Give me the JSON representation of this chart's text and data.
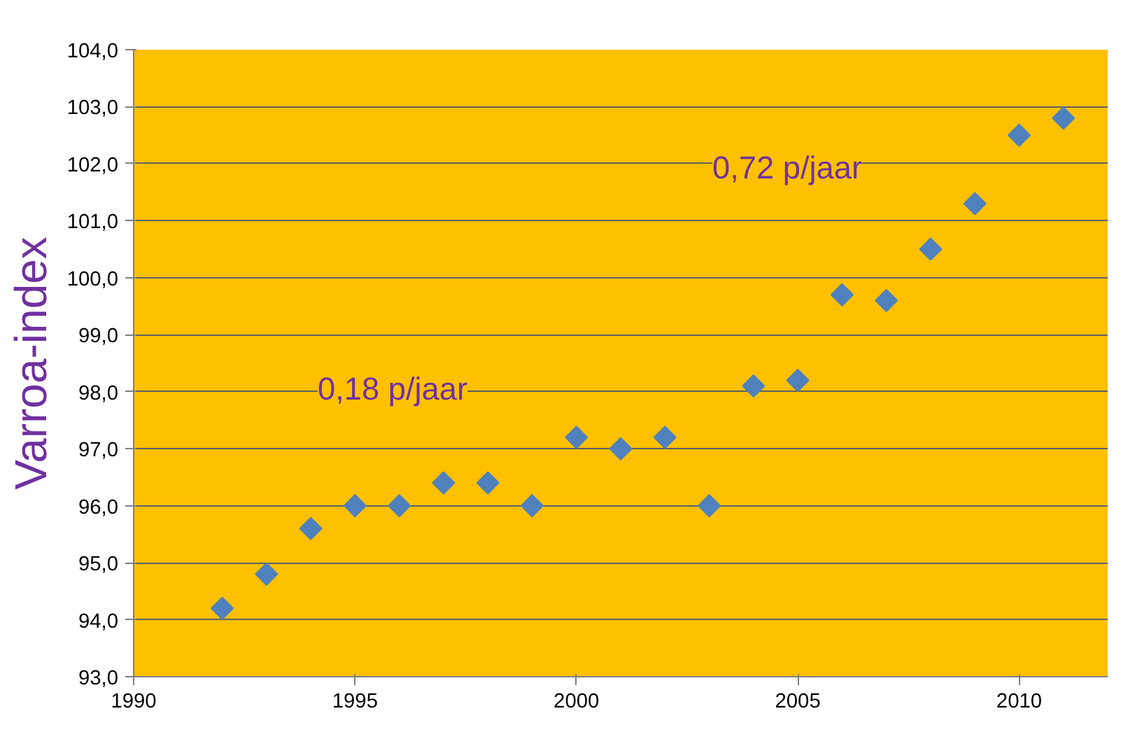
{
  "chart_data": {
    "type": "scatter",
    "ylabel": "Varroa-index",
    "x": [
      1992,
      1993,
      1994,
      1995,
      1996,
      1997,
      1998,
      1999,
      2000,
      2001,
      2002,
      2003,
      2004,
      2005,
      2006,
      2007,
      2008,
      2009,
      2010,
      2011
    ],
    "series": [
      {
        "color": "#4f81bd",
        "values": [
          94.2,
          94.8,
          95.6,
          96.0,
          96.0,
          96.4,
          96.4,
          96.0,
          97.2,
          97.0,
          97.2,
          96.0,
          98.1,
          98.2,
          99.7,
          99.6,
          100.5,
          101.3,
          102.5,
          102.8
        ]
      }
    ],
    "marker": "diamond",
    "grid": "y",
    "xlim": [
      1990,
      2012
    ],
    "xticks": [
      1990,
      1995,
      2000,
      2005,
      2010
    ],
    "ylim": [
      93,
      104
    ],
    "yticks": [
      {
        "value": 93,
        "label": "93,0"
      },
      {
        "value": 94,
        "label": "94,0"
      },
      {
        "value": 95,
        "label": "95,0"
      },
      {
        "value": 96,
        "label": "96,0"
      },
      {
        "value": 97,
        "label": "97,0"
      },
      {
        "value": 98,
        "label": "98,0"
      },
      {
        "value": 99,
        "label": "99,0"
      },
      {
        "value": 100,
        "label": "100,0"
      },
      {
        "value": 101,
        "label": "101,0"
      },
      {
        "value": 102,
        "label": "102,0"
      },
      {
        "value": 103,
        "label": "103,0"
      },
      {
        "value": 104,
        "label": "104,0"
      }
    ],
    "annotations": [
      "0,18 p/jaar",
      "0,72 p/jaar"
    ]
  }
}
